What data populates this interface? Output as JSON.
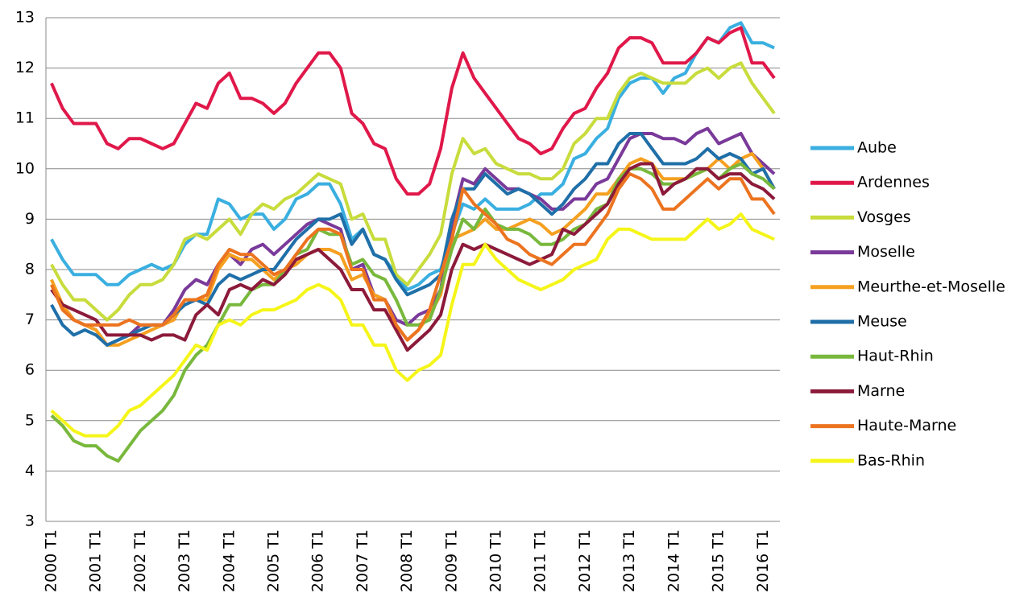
{
  "chart_data": {
    "type": "line",
    "categories": [
      "2000 T1",
      null,
      null,
      null,
      "2001 T1",
      null,
      null,
      null,
      "2002 T1",
      null,
      null,
      null,
      "2003 T1",
      null,
      null,
      null,
      "2004 T1",
      null,
      null,
      null,
      "2005 T1",
      null,
      null,
      null,
      "2006 T1",
      null,
      null,
      null,
      "2007 T1",
      null,
      null,
      null,
      "2008 T1",
      null,
      null,
      null,
      "2009 T1",
      null,
      null,
      null,
      "2010 T1",
      null,
      null,
      null,
      "2011 T1",
      null,
      null,
      null,
      "2012 T1",
      null,
      null,
      null,
      "2013 T1",
      null,
      null,
      null,
      "2014 T1",
      null,
      null,
      null,
      "2015 T1",
      null,
      null,
      null,
      "2016 T1",
      null
    ],
    "ylim": [
      3,
      13
    ],
    "yticks": [
      3,
      4,
      5,
      6,
      7,
      8,
      9,
      10,
      11,
      12,
      13
    ],
    "grid": true,
    "series": [
      {
        "name": "Aube",
        "color": "#3aafe0",
        "values": [
          8.6,
          8.2,
          7.9,
          7.9,
          7.9,
          7.7,
          7.7,
          7.9,
          8.0,
          8.1,
          8.0,
          8.1,
          8.5,
          8.7,
          8.7,
          9.4,
          9.3,
          9.0,
          9.1,
          9.1,
          8.8,
          9.0,
          9.4,
          9.5,
          9.7,
          9.7,
          9.3,
          8.6,
          8.8,
          8.3,
          8.2,
          7.9,
          7.6,
          7.7,
          7.9,
          8.0,
          8.7,
          9.3,
          9.2,
          9.4,
          9.2,
          9.2,
          9.2,
          9.3,
          9.5,
          9.5,
          9.7,
          10.2,
          10.3,
          10.6,
          10.8,
          11.4,
          11.7,
          11.8,
          11.8,
          11.5,
          11.8,
          11.9,
          12.3,
          12.6,
          12.5,
          12.8,
          12.9,
          12.5,
          12.5,
          12.4
        ]
      },
      {
        "name": "Ardennes",
        "color": "#e0184a",
        "values": [
          11.7,
          11.2,
          10.9,
          10.9,
          10.9,
          10.5,
          10.4,
          10.6,
          10.6,
          10.5,
          10.4,
          10.5,
          10.9,
          11.3,
          11.2,
          11.7,
          11.9,
          11.4,
          11.4,
          11.3,
          11.1,
          11.3,
          11.7,
          12.0,
          12.3,
          12.3,
          12.0,
          11.1,
          10.9,
          10.5,
          10.4,
          9.8,
          9.5,
          9.5,
          9.7,
          10.4,
          11.6,
          12.3,
          11.8,
          11.5,
          11.2,
          10.9,
          10.6,
          10.5,
          10.3,
          10.4,
          10.8,
          11.1,
          11.2,
          11.6,
          11.9,
          12.4,
          12.6,
          12.6,
          12.5,
          12.1,
          12.1,
          12.1,
          12.3,
          12.6,
          12.5,
          12.7,
          12.8,
          12.1,
          12.1,
          11.8
        ]
      },
      {
        "name": "Vosges",
        "color": "#c8dc3c",
        "values": [
          8.1,
          7.7,
          7.4,
          7.4,
          7.2,
          7.0,
          7.2,
          7.5,
          7.7,
          7.7,
          7.8,
          8.1,
          8.6,
          8.7,
          8.6,
          8.8,
          9.0,
          8.7,
          9.1,
          9.3,
          9.2,
          9.4,
          9.5,
          9.7,
          9.9,
          9.8,
          9.7,
          9.0,
          9.1,
          8.6,
          8.6,
          7.9,
          7.7,
          8.0,
          8.3,
          8.7,
          9.9,
          10.6,
          10.3,
          10.4,
          10.1,
          10.0,
          9.9,
          9.9,
          9.8,
          9.8,
          10.0,
          10.5,
          10.7,
          11.0,
          11.0,
          11.5,
          11.8,
          11.9,
          11.8,
          11.7,
          11.7,
          11.7,
          11.9,
          12.0,
          11.8,
          12.0,
          12.1,
          11.7,
          11.4,
          11.1
        ]
      },
      {
        "name": "Moselle",
        "color": "#7a3a9a",
        "values": [
          7.6,
          7.3,
          7.0,
          6.9,
          6.8,
          6.5,
          6.6,
          6.7,
          6.9,
          6.9,
          6.9,
          7.2,
          7.6,
          7.8,
          7.7,
          8.1,
          8.3,
          8.1,
          8.4,
          8.5,
          8.3,
          8.5,
          8.7,
          8.9,
          9.0,
          8.9,
          8.8,
          8.0,
          8.1,
          7.5,
          7.4,
          7.0,
          6.9,
          7.1,
          7.2,
          7.6,
          8.9,
          9.8,
          9.7,
          10.0,
          9.8,
          9.6,
          9.6,
          9.5,
          9.4,
          9.2,
          9.2,
          9.4,
          9.4,
          9.7,
          9.8,
          10.2,
          10.6,
          10.7,
          10.7,
          10.6,
          10.6,
          10.5,
          10.7,
          10.8,
          10.5,
          10.6,
          10.7,
          10.3,
          10.1,
          9.9
        ]
      },
      {
        "name": "Meurthe-et-Moselle",
        "color": "#f5a020",
        "values": [
          7.8,
          7.3,
          7.0,
          6.9,
          6.8,
          6.5,
          6.5,
          6.6,
          6.7,
          6.8,
          6.9,
          7.0,
          7.4,
          7.4,
          7.4,
          8.0,
          8.3,
          8.2,
          8.2,
          8.0,
          7.8,
          8.0,
          8.1,
          8.3,
          8.4,
          8.4,
          8.3,
          7.8,
          7.9,
          7.5,
          7.4,
          6.9,
          6.6,
          6.8,
          7.1,
          7.5,
          8.6,
          8.7,
          8.8,
          9.0,
          8.8,
          8.8,
          8.9,
          9.0,
          8.9,
          8.7,
          8.8,
          9.0,
          9.2,
          9.5,
          9.5,
          9.8,
          10.1,
          10.2,
          10.1,
          9.8,
          9.8,
          9.8,
          9.9,
          10.0,
          10.2,
          10.0,
          10.2,
          10.3,
          10.0,
          9.6
        ]
      },
      {
        "name": "Meuse",
        "color": "#1f6fa8",
        "values": [
          7.3,
          6.9,
          6.7,
          6.8,
          6.7,
          6.5,
          6.6,
          6.7,
          6.8,
          6.9,
          6.9,
          7.1,
          7.3,
          7.4,
          7.3,
          7.7,
          7.9,
          7.8,
          7.9,
          8.0,
          8.0,
          8.3,
          8.6,
          8.8,
          9.0,
          9.0,
          9.1,
          8.5,
          8.8,
          8.3,
          8.2,
          7.8,
          7.5,
          7.6,
          7.7,
          7.9,
          9.0,
          9.6,
          9.6,
          9.9,
          9.7,
          9.5,
          9.6,
          9.5,
          9.3,
          9.1,
          9.3,
          9.6,
          9.8,
          10.1,
          10.1,
          10.5,
          10.7,
          10.7,
          10.4,
          10.1,
          10.1,
          10.1,
          10.2,
          10.4,
          10.2,
          10.3,
          10.2,
          9.9,
          10.0,
          9.6
        ]
      },
      {
        "name": "Haut-Rhin",
        "color": "#78b83c",
        "values": [
          5.1,
          4.9,
          4.6,
          4.5,
          4.5,
          4.3,
          4.2,
          4.5,
          4.8,
          5.0,
          5.2,
          5.5,
          6.0,
          6.3,
          6.5,
          6.9,
          7.3,
          7.3,
          7.6,
          7.7,
          7.7,
          8.0,
          8.3,
          8.4,
          8.8,
          8.7,
          8.7,
          8.1,
          8.2,
          7.9,
          7.8,
          7.4,
          6.9,
          6.9,
          7.0,
          7.6,
          8.4,
          9.0,
          8.8,
          9.2,
          8.9,
          8.8,
          8.8,
          8.7,
          8.5,
          8.5,
          8.6,
          8.8,
          8.9,
          9.2,
          9.3,
          9.8,
          10.0,
          10.0,
          9.9,
          9.7,
          9.7,
          9.8,
          9.9,
          10.0,
          9.8,
          10.0,
          10.1,
          9.9,
          9.8,
          9.6
        ]
      },
      {
        "name": "Marne",
        "color": "#8c1a3a",
        "values": [
          7.6,
          7.3,
          7.2,
          7.1,
          7.0,
          6.7,
          6.7,
          6.7,
          6.7,
          6.6,
          6.7,
          6.7,
          6.6,
          7.1,
          7.3,
          7.1,
          7.6,
          7.7,
          7.6,
          7.8,
          7.7,
          7.9,
          8.2,
          8.3,
          8.4,
          8.2,
          8.0,
          7.6,
          7.6,
          7.2,
          7.2,
          6.8,
          6.4,
          6.6,
          6.8,
          7.1,
          8.0,
          8.5,
          8.4,
          8.5,
          8.4,
          8.3,
          8.2,
          8.1,
          8.2,
          8.3,
          8.8,
          8.7,
          8.9,
          9.1,
          9.3,
          9.7,
          10.0,
          10.1,
          10.1,
          9.5,
          9.7,
          9.8,
          10.0,
          10.0,
          9.8,
          9.9,
          9.9,
          9.7,
          9.6,
          9.4
        ]
      },
      {
        "name": "Haute-Marne",
        "color": "#ec7420",
        "values": [
          7.7,
          7.2,
          7.0,
          6.9,
          6.9,
          6.9,
          6.9,
          7.0,
          6.9,
          6.9,
          6.9,
          7.1,
          7.4,
          7.4,
          7.5,
          8.1,
          8.4,
          8.3,
          8.3,
          8.1,
          7.9,
          8.0,
          8.3,
          8.6,
          8.8,
          8.8,
          8.7,
          8.0,
          8.0,
          7.4,
          7.4,
          6.9,
          6.6,
          6.8,
          7.2,
          7.9,
          8.6,
          9.6,
          9.3,
          9.1,
          8.9,
          8.6,
          8.5,
          8.3,
          8.2,
          8.1,
          8.3,
          8.5,
          8.5,
          8.8,
          9.1,
          9.6,
          9.9,
          9.8,
          9.6,
          9.2,
          9.2,
          9.4,
          9.6,
          9.8,
          9.6,
          9.8,
          9.8,
          9.4,
          9.4,
          9.1
        ]
      },
      {
        "name": "Bas-Rhin",
        "color": "#f5f51a",
        "values": [
          5.2,
          5.0,
          4.8,
          4.7,
          4.7,
          4.7,
          4.9,
          5.2,
          5.3,
          5.5,
          5.7,
          5.9,
          6.2,
          6.5,
          6.4,
          6.9,
          7.0,
          6.9,
          7.1,
          7.2,
          7.2,
          7.3,
          7.4,
          7.6,
          7.7,
          7.6,
          7.4,
          6.9,
          6.9,
          6.5,
          6.5,
          6.0,
          5.8,
          6.0,
          6.1,
          6.3,
          7.3,
          8.1,
          8.1,
          8.5,
          8.2,
          8.0,
          7.8,
          7.7,
          7.6,
          7.7,
          7.8,
          8.0,
          8.1,
          8.2,
          8.6,
          8.8,
          8.8,
          8.7,
          8.6,
          8.6,
          8.6,
          8.6,
          8.8,
          9.0,
          8.8,
          8.9,
          9.1,
          8.8,
          8.7,
          8.6
        ]
      }
    ]
  }
}
